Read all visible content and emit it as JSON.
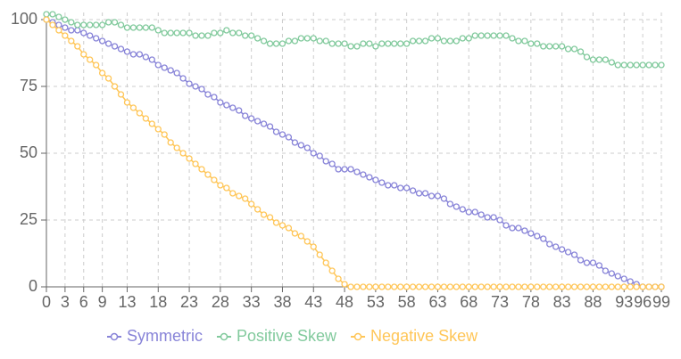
{
  "chart_data": {
    "type": "line",
    "x": [
      0,
      1,
      2,
      3,
      4,
      5,
      6,
      7,
      8,
      9,
      10,
      11,
      12,
      13,
      14,
      15,
      16,
      17,
      18,
      19,
      20,
      21,
      22,
      23,
      24,
      25,
      26,
      27,
      28,
      29,
      30,
      31,
      32,
      33,
      34,
      35,
      36,
      37,
      38,
      39,
      40,
      41,
      42,
      43,
      44,
      45,
      46,
      47,
      48,
      49,
      50,
      51,
      52,
      53,
      54,
      55,
      56,
      57,
      58,
      59,
      60,
      61,
      62,
      63,
      64,
      65,
      66,
      67,
      68,
      69,
      70,
      71,
      72,
      73,
      74,
      75,
      76,
      77,
      78,
      79,
      80,
      81,
      82,
      83,
      84,
      85,
      86,
      87,
      88,
      89,
      90,
      91,
      92,
      93,
      94,
      95,
      96,
      97,
      98,
      99
    ],
    "xlim": [
      0,
      99
    ],
    "xticks": [
      0,
      3,
      6,
      9,
      13,
      18,
      23,
      28,
      33,
      38,
      43,
      48,
      53,
      58,
      63,
      68,
      73,
      78,
      83,
      88,
      93,
      96,
      99
    ],
    "ylim": [
      0,
      100
    ],
    "yticks": [
      0,
      25,
      50,
      75,
      100
    ],
    "grid": true,
    "legend": "bottom",
    "series": [
      {
        "name": "Symmetric",
        "color": "#8884d8",
        "values": [
          100,
          99,
          98,
          97,
          96,
          96,
          95,
          94,
          93,
          92,
          91,
          90,
          89,
          88,
          87,
          87,
          86,
          85,
          83,
          82,
          81,
          80,
          78,
          76,
          75,
          74,
          72,
          71,
          69,
          68,
          67,
          66,
          64,
          63,
          62,
          61,
          60,
          58,
          57,
          56,
          54,
          53,
          52,
          50,
          49,
          47,
          46,
          44,
          44,
          44,
          43,
          42,
          41,
          40,
          39,
          38,
          38,
          37,
          37,
          36,
          35,
          35,
          34,
          34,
          33,
          31,
          30,
          29,
          28,
          28,
          27,
          26,
          26,
          25,
          23,
          22,
          22,
          21,
          20,
          19,
          18,
          16,
          15,
          14,
          13,
          12,
          10,
          9,
          9,
          8,
          6,
          5,
          4,
          3,
          2,
          1,
          0,
          0,
          0,
          0
        ]
      },
      {
        "name": "Positive Skew",
        "color": "#82ca9d",
        "values": [
          102,
          102,
          101,
          100,
          99,
          98,
          98,
          98,
          98,
          98,
          99,
          99,
          98,
          97,
          97,
          97,
          97,
          97,
          96,
          95,
          95,
          95,
          95,
          95,
          94,
          94,
          94,
          95,
          95,
          96,
          95,
          95,
          94,
          94,
          93,
          92,
          91,
          91,
          91,
          92,
          92,
          93,
          93,
          93,
          92,
          92,
          91,
          91,
          91,
          90,
          90,
          91,
          91,
          90,
          91,
          91,
          91,
          91,
          91,
          92,
          92,
          92,
          93,
          93,
          92,
          92,
          92,
          93,
          93,
          94,
          94,
          94,
          94,
          94,
          94,
          93,
          92,
          92,
          91,
          91,
          90,
          90,
          90,
          90,
          89,
          89,
          88,
          86,
          85,
          85,
          85,
          84,
          83,
          83,
          83,
          83,
          83,
          83,
          83,
          83
        ]
      },
      {
        "name": "Negative Skew",
        "color": "#ffc658",
        "values": [
          100,
          98,
          96,
          94,
          92,
          90,
          87,
          85,
          83,
          80,
          78,
          75,
          72,
          69,
          67,
          65,
          63,
          61,
          59,
          57,
          54,
          52,
          50,
          48,
          46,
          44,
          42,
          40,
          38,
          37,
          35,
          34,
          33,
          31,
          29,
          27,
          26,
          24,
          23,
          22,
          20,
          19,
          17,
          15,
          12,
          9,
          6,
          3,
          1,
          0,
          0,
          0,
          0,
          0,
          0,
          0,
          0,
          0,
          0,
          0,
          0,
          0,
          0,
          0,
          0,
          0,
          0,
          0,
          0,
          0,
          0,
          0,
          0,
          0,
          0,
          0,
          0,
          0,
          0,
          0,
          0,
          0,
          0,
          0,
          0,
          0,
          0,
          0,
          0,
          0,
          0,
          0,
          0,
          0,
          0,
          0,
          0,
          0,
          0,
          0
        ]
      }
    ]
  }
}
